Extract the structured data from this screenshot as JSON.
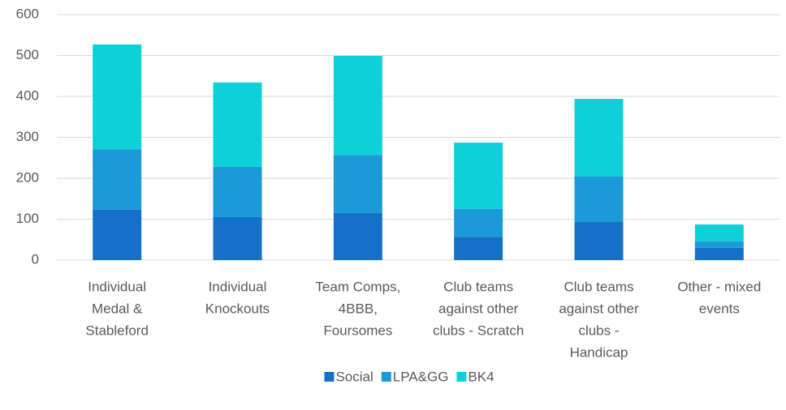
{
  "chart_data": {
    "type": "stacked_bar",
    "categories": [
      [
        "Individual",
        "Medal &",
        "Stableford"
      ],
      [
        "Individual",
        "Knockouts"
      ],
      [
        "Team Comps,",
        "4BBB,",
        "Foursomes"
      ],
      [
        "Club teams",
        "against other",
        "clubs - Scratch"
      ],
      [
        "Club teams",
        "against other",
        "clubs -",
        "Handicap"
      ],
      [
        "Other - mixed",
        "events"
      ]
    ],
    "series": [
      {
        "name": "Social",
        "color": "#1570c8",
        "values": [
          123,
          105,
          115,
          57,
          93,
          30
        ]
      },
      {
        "name": "LPA&GG",
        "color": "#1a9ad6",
        "values": [
          148,
          123,
          142,
          68,
          111,
          16
        ]
      },
      {
        "name": "BK4",
        "color": "#0fcfd8",
        "values": [
          256,
          206,
          242,
          162,
          190,
          41
        ]
      }
    ],
    "ylim": [
      0,
      600
    ],
    "yticks": [
      0,
      100,
      200,
      300,
      400,
      500,
      600
    ],
    "grid": true,
    "legend": "bottom"
  }
}
